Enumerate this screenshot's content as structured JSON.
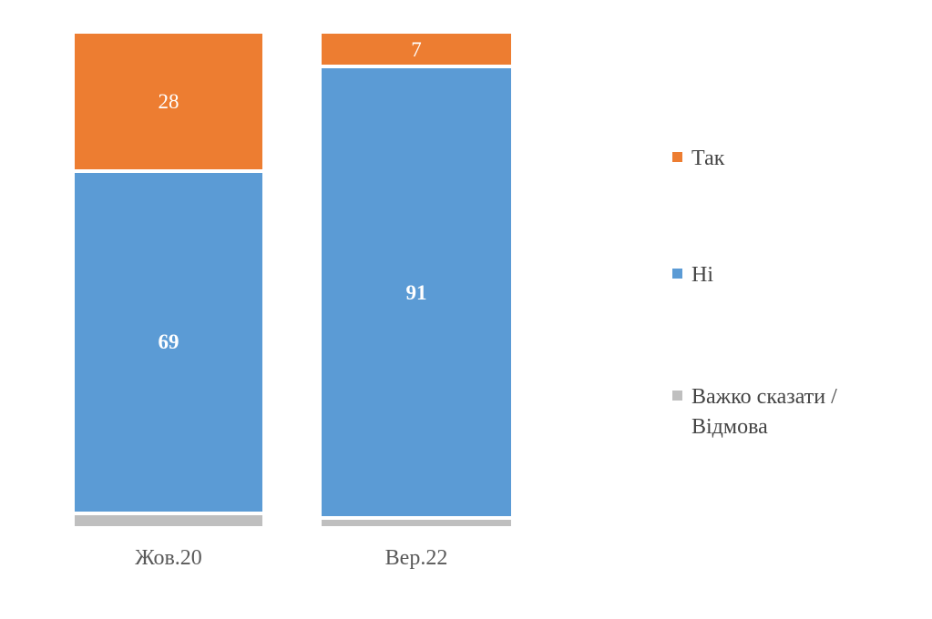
{
  "background": "#ffffff",
  "chart_data": {
    "type": "bar",
    "subtype": "stacked-column",
    "title": "",
    "categories": [
      "Жов.20",
      "Вер.22"
    ],
    "series": [
      {
        "name": "Так",
        "color": "#ED7D31",
        "values": [
          28,
          7
        ],
        "data_labels": [
          "28",
          "7"
        ],
        "label_bold": false
      },
      {
        "name": "Ні",
        "color": "#5B9BD5",
        "values": [
          69,
          91
        ],
        "data_labels": [
          "69",
          "91"
        ],
        "label_bold": true
      },
      {
        "name": "Важко сказати / Відмова",
        "color": "#BFBFBF",
        "values": [
          3,
          2
        ],
        "data_labels": [
          "",
          ""
        ],
        "label_bold": false
      }
    ],
    "ylim": [
      0,
      100
    ],
    "grid": false,
    "axes_visible": false,
    "legend_position": "right",
    "data_label_color": "#ffffff",
    "category_label_color": "#595959",
    "legend_text_color": "#444444",
    "segment_gap_color": "#ffffff"
  }
}
